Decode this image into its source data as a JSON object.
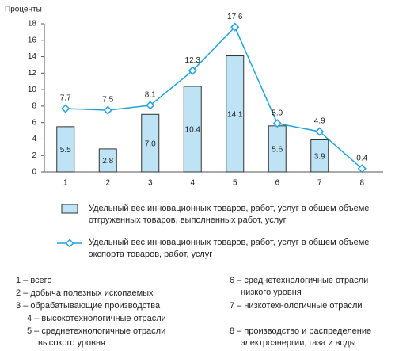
{
  "chart_data": {
    "type": "bar",
    "y_label": "Проценты",
    "categories": [
      "1",
      "2",
      "3",
      "4",
      "5",
      "6",
      "7",
      "8"
    ],
    "series": [
      {
        "name": "Удельный вес инновационных товаров, работ, услуг в общем объеме отгруженных товаров, выполненных работ, услуг",
        "type": "bar",
        "color": "#bde3f5",
        "values": [
          5.5,
          2.8,
          7.0,
          10.4,
          14.1,
          5.6,
          3.9,
          null
        ],
        "value_labels": [
          "5.5",
          "2.8",
          "7.0",
          "10.4",
          "14.1",
          "5.6",
          "3.9",
          null
        ]
      },
      {
        "name": "Удельный вес инновационных товаров, работ, услуг в общем объеме экспорта товаров, работ, услуг",
        "type": "line",
        "color": "#1fa3dc",
        "values": [
          7.7,
          7.5,
          8.1,
          12.3,
          17.6,
          5.9,
          4.9,
          0.4
        ]
      }
    ],
    "ylim": [
      0,
      18
    ],
    "yticks": [
      0,
      2,
      4,
      6,
      8,
      10,
      12,
      14,
      16,
      18
    ],
    "notes": [
      "1 – всего",
      "2 – добыча полезных ископаемых",
      "3 – обрабатывающие производства",
      "4 – высокотехнологичные отрасли",
      "5 – среднетехнологичные отрасли высокого уровня",
      "6 – среднетехнологичные отрасли низкого уровня",
      "7 – низкотехнологичные отрасли",
      "8 – производство и распределение электроэнергии, газа и воды"
    ]
  }
}
